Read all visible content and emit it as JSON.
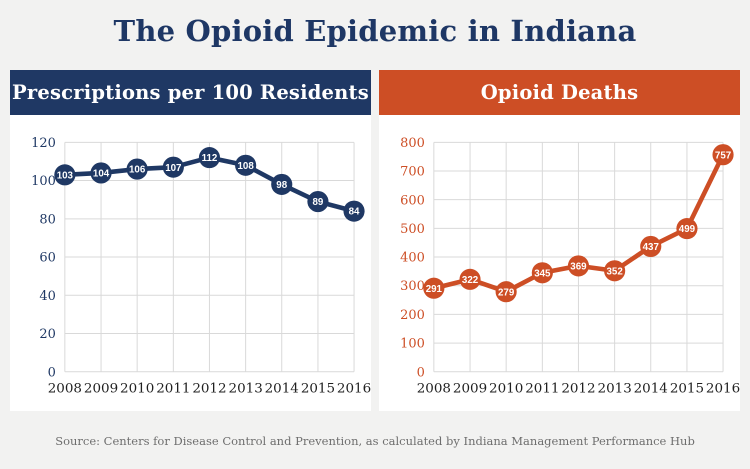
{
  "page": {
    "title": "The Opioid Epidemic in Indiana",
    "source": "Source: Centers for Disease Control and Prevention, as calculated by Indiana Management Performance Hub",
    "background_color": "#f2f2f1",
    "panel_background": "#ffffff",
    "title_color": "#1e3765",
    "grid_color": "#d9d9d9",
    "x_tick_color": "#1f1f1f",
    "source_color": "#6e6e6e"
  },
  "chart_data": [
    {
      "type": "line",
      "title": "Prescriptions per 100 Residents",
      "categories": [
        "2008",
        "2009",
        "2010",
        "2011",
        "2012",
        "2013",
        "2014",
        "2015",
        "2016"
      ],
      "values": [
        103,
        104,
        106,
        107,
        112,
        108,
        98,
        89,
        84
      ],
      "ylim": [
        0,
        120
      ],
      "ytick_step": 20,
      "ytick_labels": [
        "0",
        "20",
        "40",
        "60",
        "80",
        "100",
        "120"
      ],
      "grid": true,
      "legend": "none",
      "line_color": "#1f3864",
      "header_bg": "#1f3864",
      "y_tick_color": "#1f3864",
      "point_label_color": "#ffffff"
    },
    {
      "type": "line",
      "title": "Opioid Deaths",
      "categories": [
        "2008",
        "2009",
        "2010",
        "2011",
        "2012",
        "2013",
        "2014",
        "2015",
        "2016"
      ],
      "values": [
        291,
        322,
        279,
        345,
        369,
        352,
        437,
        499,
        757
      ],
      "ylim": [
        0,
        800
      ],
      "ytick_step": 100,
      "ytick_labels": [
        "0",
        "100",
        "200",
        "300",
        "400",
        "500",
        "600",
        "700",
        "800"
      ],
      "grid": true,
      "legend": "none",
      "line_color": "#cd4e25",
      "header_bg": "#cd4e25",
      "y_tick_color": "#cd4e25",
      "point_label_color": "#ffffff"
    }
  ]
}
